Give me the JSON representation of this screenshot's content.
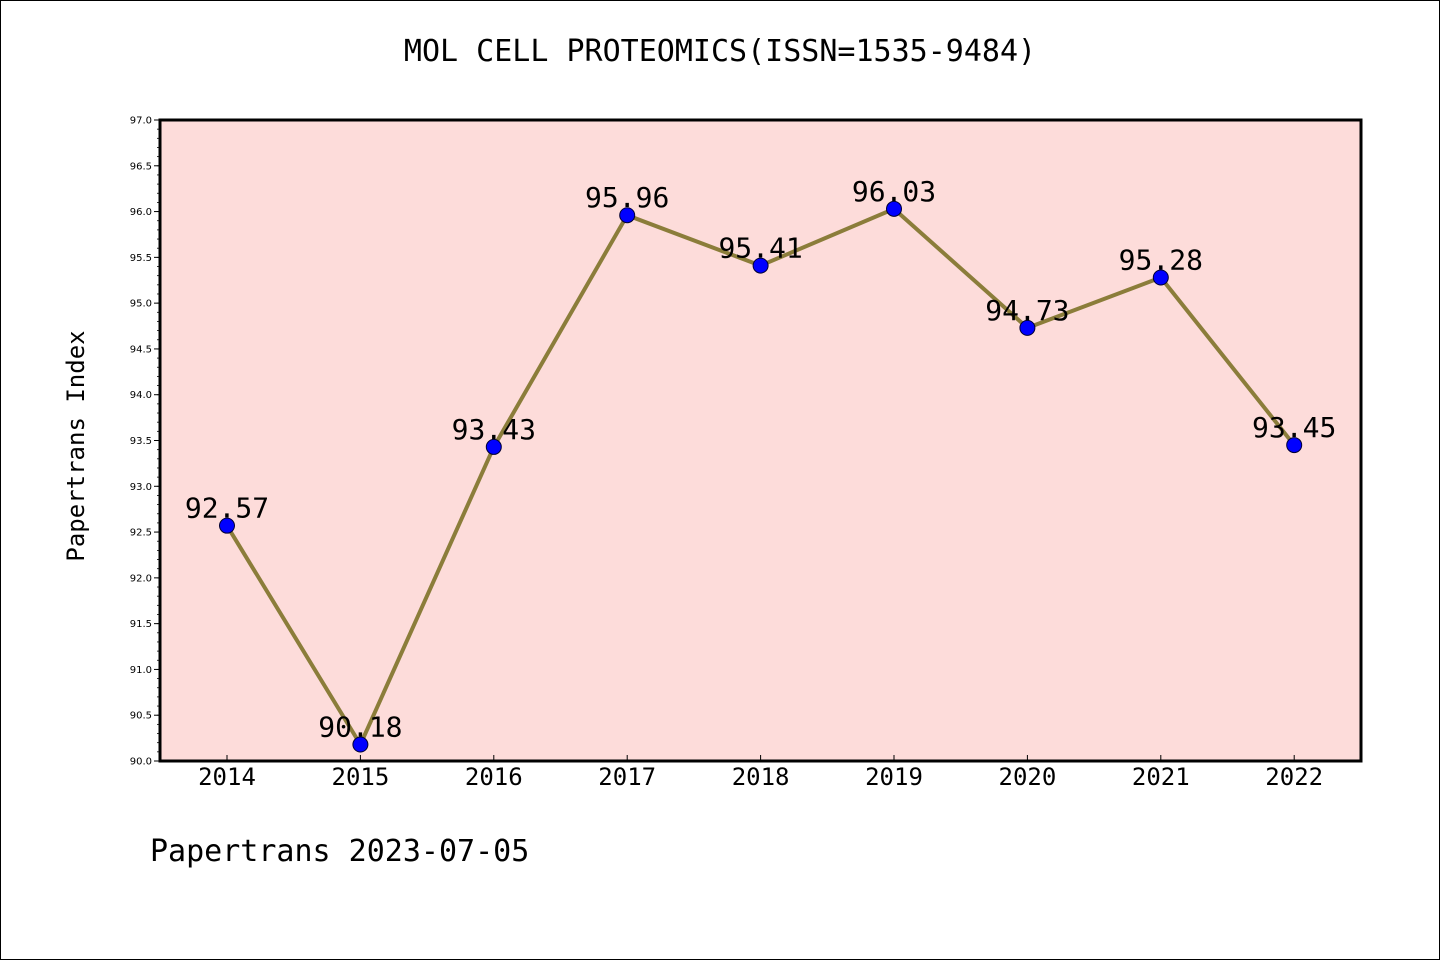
{
  "title": "MOL CELL PROTEOMICS(ISSN=1535-9484)",
  "footer": "Papertrans 2023-07-05",
  "colors": {
    "plot_background": "#fddcda",
    "line": "#8b7d3a",
    "marker": "#0000ff"
  },
  "chart_data": {
    "type": "line",
    "title": "MOL CELL PROTEOMICS(ISSN=1535-9484)",
    "xlabel": "",
    "ylabel": "Papertrans Index",
    "categories": [
      "2014",
      "2015",
      "2016",
      "2017",
      "2018",
      "2019",
      "2020",
      "2021",
      "2022"
    ],
    "values": [
      92.57,
      90.18,
      93.43,
      95.96,
      95.41,
      96.03,
      94.73,
      95.28,
      93.45
    ],
    "data_labels": [
      "92.57",
      "90.18",
      "93.43",
      "95.96",
      "95.41",
      "96.03",
      "94.73",
      "95.28",
      "93.45"
    ],
    "ylim": [
      90.0,
      97.0
    ],
    "yticks": [
      "90.0",
      "90.5",
      "91.0",
      "91.5",
      "92.0",
      "92.5",
      "93.0",
      "93.5",
      "94.0",
      "94.5",
      "95.0",
      "95.5",
      "96.0",
      "96.5",
      "97.0"
    ],
    "grid": false,
    "legend": "none"
  }
}
